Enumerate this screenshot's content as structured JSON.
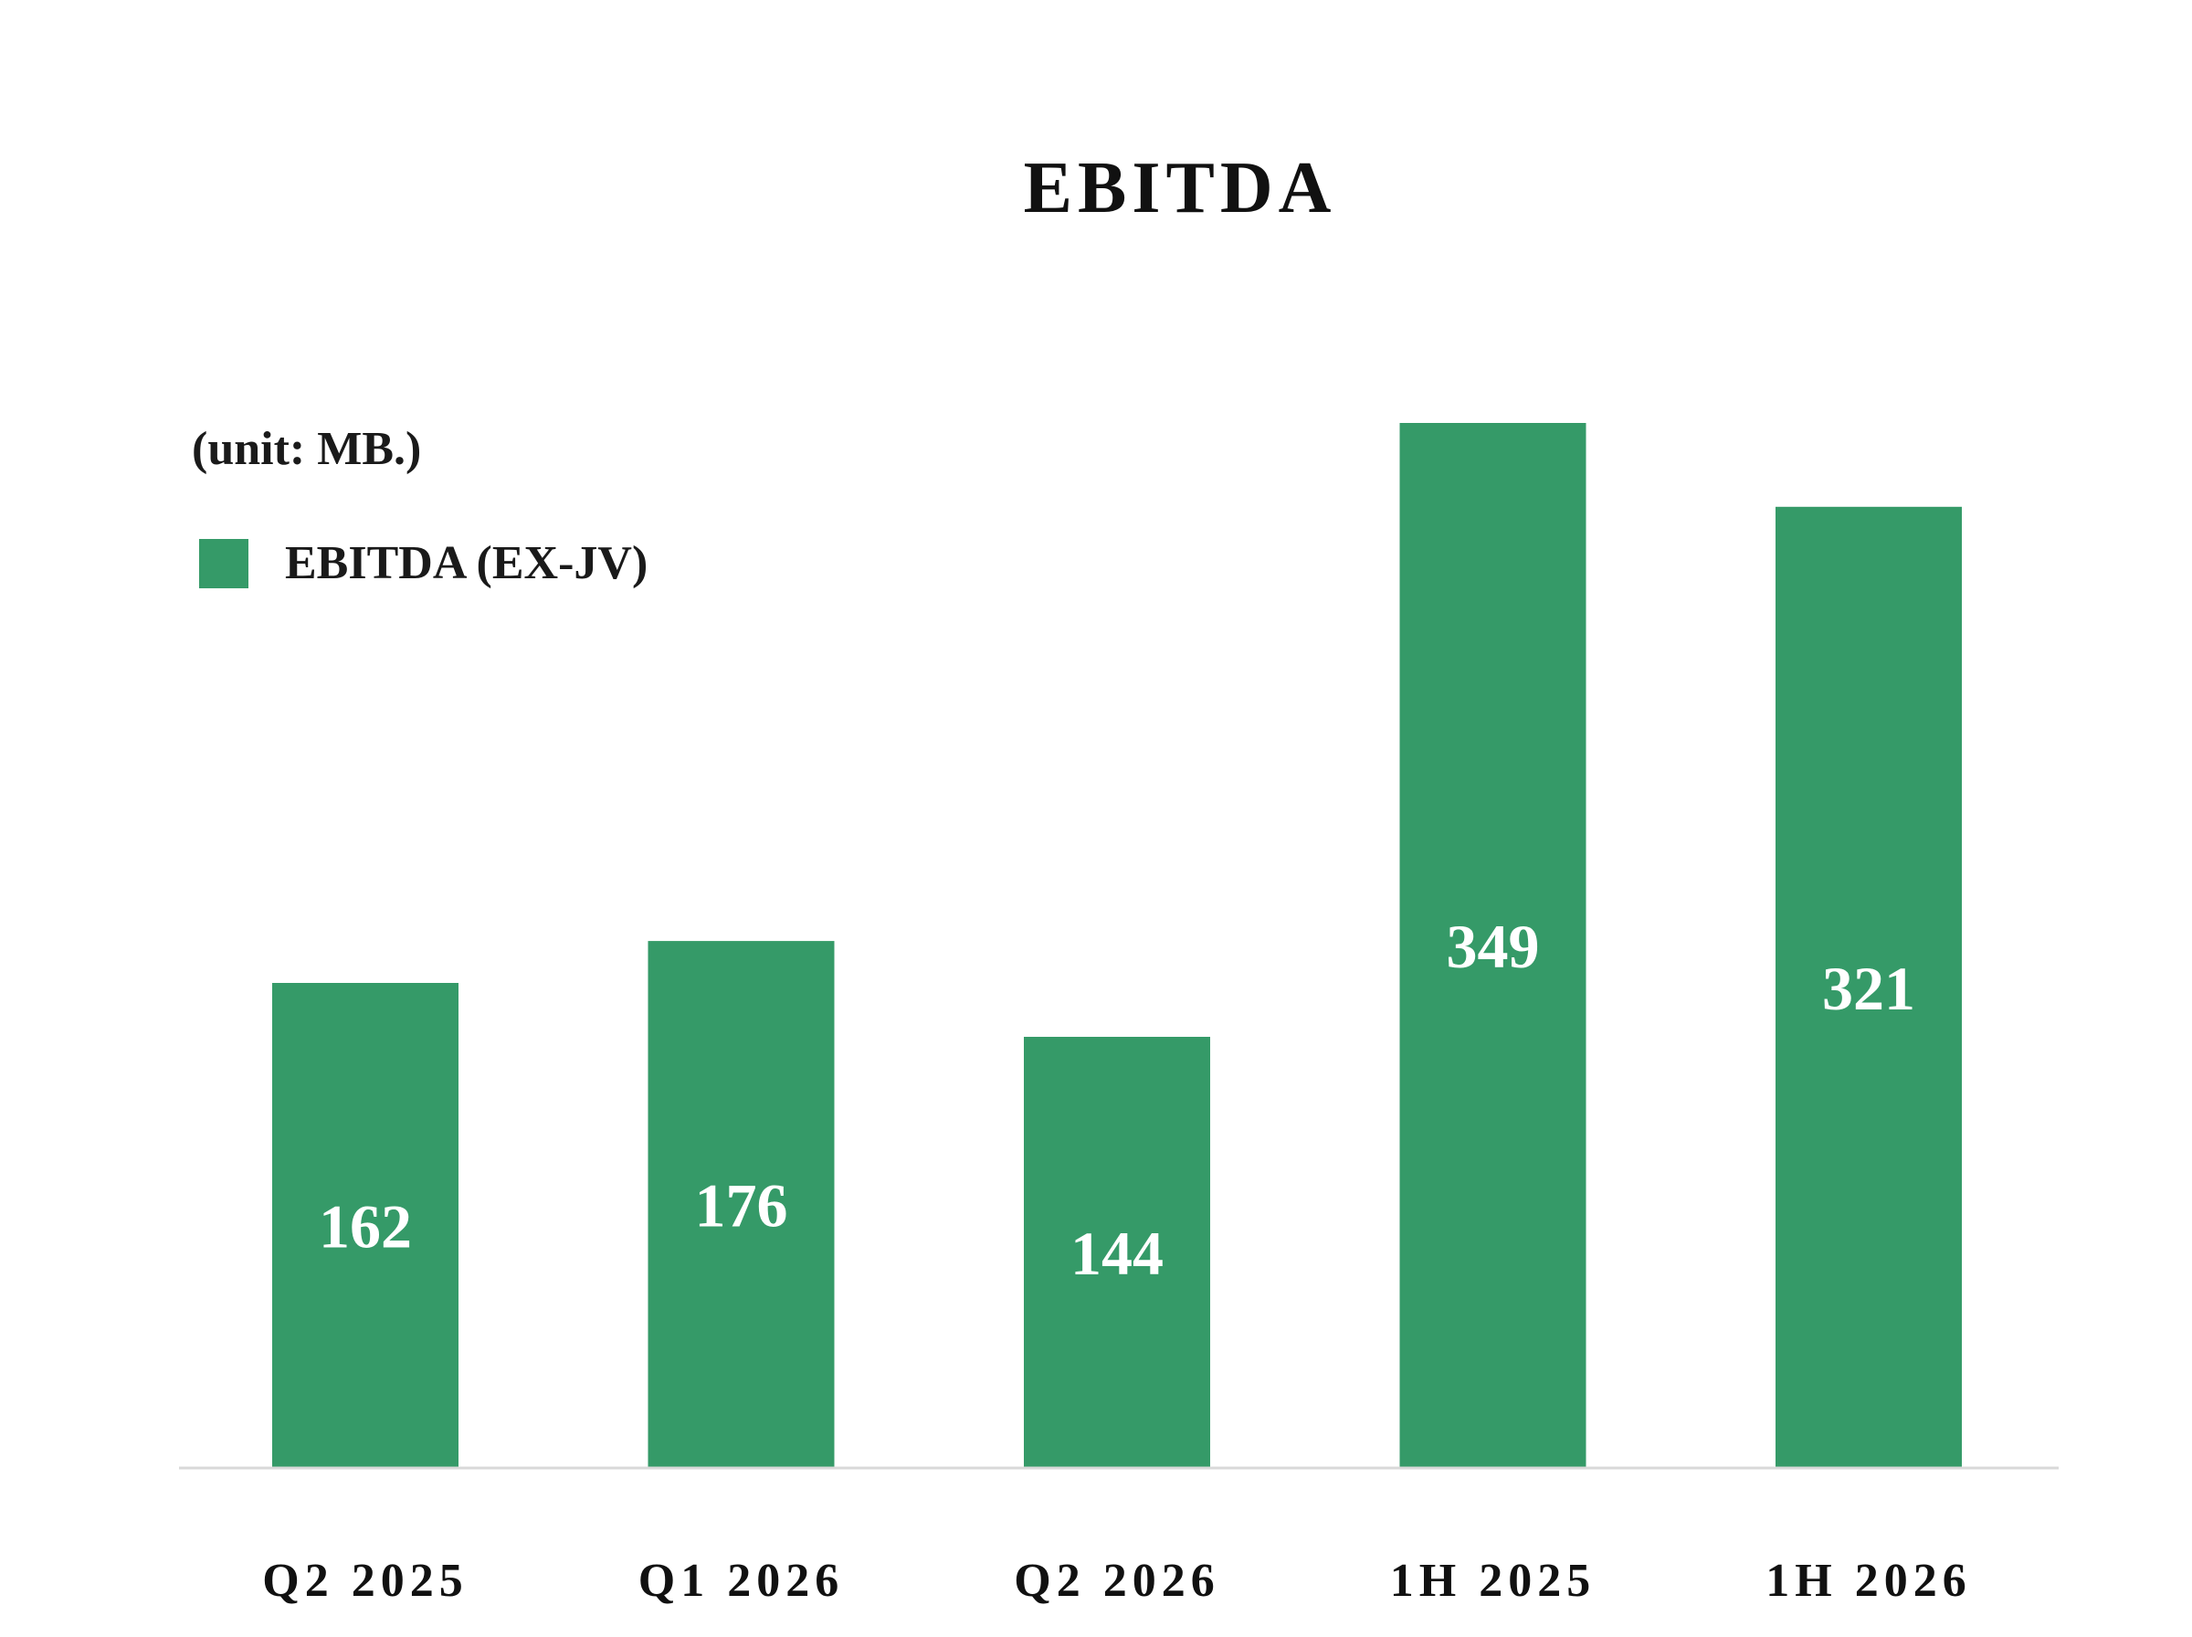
{
  "chart_data": {
    "type": "bar",
    "title": "EBITDA",
    "unit_note": "(unit: MB.)",
    "categories": [
      "Q2 2025",
      "Q1 2026",
      "Q2 2026",
      "1H 2025",
      "1H 2026"
    ],
    "series": [
      {
        "name": "EBITDA (EX-JV)",
        "values": [
          162,
          176,
          144,
          349,
          321
        ],
        "color": "#359a68"
      }
    ],
    "data_labels": [
      "162",
      "176",
      "144",
      "349",
      "321"
    ],
    "ylim": [
      0,
      350
    ],
    "grid": false,
    "legend_position": "top-left",
    "colors": {
      "bar": "#359a68",
      "baseline": "#d9d9d9",
      "value_label": "#ffffff",
      "text": "#111111"
    }
  }
}
